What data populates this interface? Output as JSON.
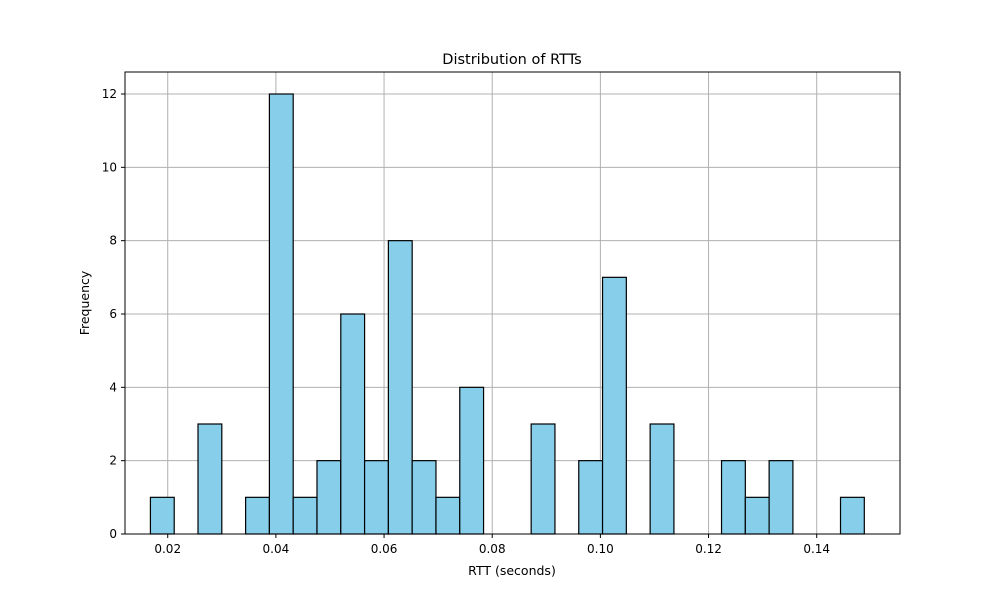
{
  "chart_data": {
    "type": "bar",
    "title": "Distribution of RTTs",
    "xlabel": "RTT (seconds)",
    "ylabel": "Frequency",
    "xlim": [
      0.0121,
      0.1554
    ],
    "ylim": [
      0,
      12.6
    ],
    "xticks": [
      0.02,
      0.04,
      0.06,
      0.08,
      0.1,
      0.12,
      0.14
    ],
    "xtick_labels": [
      "0.02",
      "0.04",
      "0.06",
      "0.08",
      "0.10",
      "0.12",
      "0.14"
    ],
    "yticks": [
      0,
      2,
      4,
      6,
      8,
      10,
      12
    ],
    "ytick_labels": [
      "0",
      "2",
      "4",
      "6",
      "8",
      "10",
      "12"
    ],
    "grid": true,
    "bar_color": "#87ceeb",
    "edge_color": "#000000",
    "bin_start": 0.0168,
    "bin_width": 0.0044,
    "counts": [
      1,
      0,
      3,
      0,
      1,
      12,
      1,
      2,
      6,
      2,
      8,
      2,
      1,
      4,
      0,
      0,
      3,
      0,
      2,
      7,
      0,
      3,
      0,
      0,
      2,
      1,
      2,
      0,
      0,
      1
    ]
  }
}
